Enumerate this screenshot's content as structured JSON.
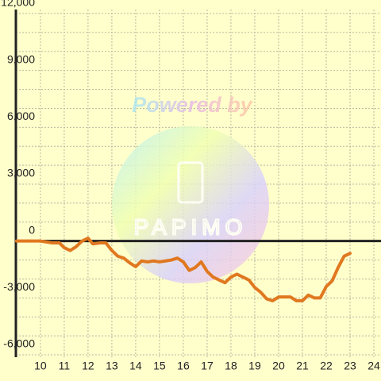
{
  "chart_data": {
    "type": "line",
    "watermark_text": "Powered by",
    "watermark_logo": "PAPIMO",
    "x": [
      9,
      10,
      10.5,
      10.8,
      11,
      11.25,
      11.5,
      11.75,
      12,
      12.2,
      12.5,
      12.75,
      13,
      13.25,
      13.5,
      13.75,
      14,
      14.25,
      14.5,
      14.75,
      15,
      15.25,
      15.5,
      15.75,
      16,
      16.25,
      16.5,
      16.75,
      17,
      17.25,
      17.5,
      17.75,
      18,
      18.25,
      18.5,
      18.75,
      19,
      19.25,
      19.5,
      19.75,
      20,
      20.25,
      20.5,
      20.75,
      21,
      21.25,
      21.5,
      21.75,
      22,
      22.25,
      22.5,
      22.75,
      23
    ],
    "series": [
      {
        "color": "#e07820",
        "values": [
          0,
          0,
          -100,
          -100,
          -350,
          -500,
          -300,
          0,
          150,
          -150,
          -100,
          -100,
          -500,
          -800,
          -900,
          -1150,
          -1350,
          -1050,
          -1100,
          -1050,
          -1100,
          -1050,
          -1000,
          -900,
          -1100,
          -1550,
          -1400,
          -1100,
          -1600,
          -1900,
          -2050,
          -2200,
          -1900,
          -1750,
          -1900,
          -2050,
          -2450,
          -2700,
          -3050,
          -3150,
          -2950,
          -2950,
          -2950,
          -3150,
          -3150,
          -2850,
          -3000,
          -3000,
          -2400,
          -2100,
          -1400,
          -800,
          -650
        ]
      }
    ],
    "xlim": [
      8.97,
      24.3
    ],
    "xticks": [
      10,
      11,
      12,
      13,
      14,
      15,
      16,
      17,
      18,
      19,
      20,
      21,
      22,
      23,
      24
    ],
    "ylim": [
      -6000,
      12000
    ],
    "yticks": [
      {
        "value": -6000,
        "label": "-6,000"
      },
      {
        "value": -3000,
        "label": "-3,000"
      },
      0,
      {
        "value": 3000,
        "label": "3,000"
      },
      {
        "value": 6000,
        "label": "6,000"
      },
      {
        "value": 9000,
        "label": "9,000"
      },
      {
        "value": 12000,
        "label": "12,000"
      }
    ],
    "yminor_ticks": [
      -5000,
      -4000,
      -2000,
      -1000,
      1000,
      2000,
      4000,
      5000,
      7000,
      8000,
      10000,
      11000
    ],
    "grid": true
  }
}
